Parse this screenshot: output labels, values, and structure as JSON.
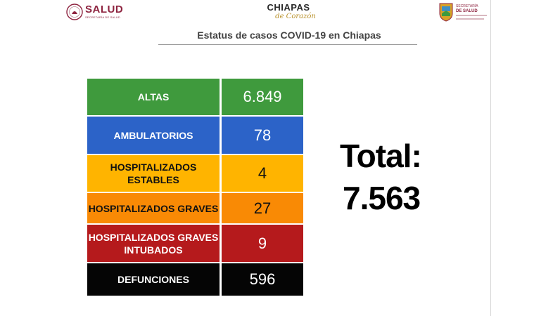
{
  "header": {
    "salud_logo": {
      "brand": "SALUD",
      "sub": "SECRETARÍA DE SALUD"
    },
    "chiapas_logo": {
      "main": "CHIAPAS",
      "script": "de Corazón"
    },
    "state_logo": {
      "line1": "SECRETARÍA",
      "line2": "DE SALUD"
    }
  },
  "title": "Estatus de casos COVID-19 en Chiapas",
  "table": {
    "rows": [
      {
        "label": "ALTAS",
        "value": "6.849",
        "color": "#3f9a3d",
        "text_color": "#ffffff"
      },
      {
        "label": "AMBULATORIOS",
        "value": "78",
        "color": "#2c63c8",
        "text_color": "#ffffff"
      },
      {
        "label": "HOSPITALIZADOS ESTABLES",
        "value": "4",
        "color": "#ffb400",
        "text_color": "#111111"
      },
      {
        "label": "HOSPITALIZADOS GRAVES",
        "value": "27",
        "color": "#f98a05",
        "text_color": "#111111"
      },
      {
        "label": "HOSPITALIZADOS GRAVES INTUBADOS",
        "value": "9",
        "color": "#b51a1c",
        "text_color": "#ffffff"
      },
      {
        "label": "DEFUNCIONES",
        "value": "596",
        "color": "#050505",
        "text_color": "#ffffff"
      }
    ]
  },
  "total": {
    "label": "Total:",
    "value": "7.563"
  }
}
